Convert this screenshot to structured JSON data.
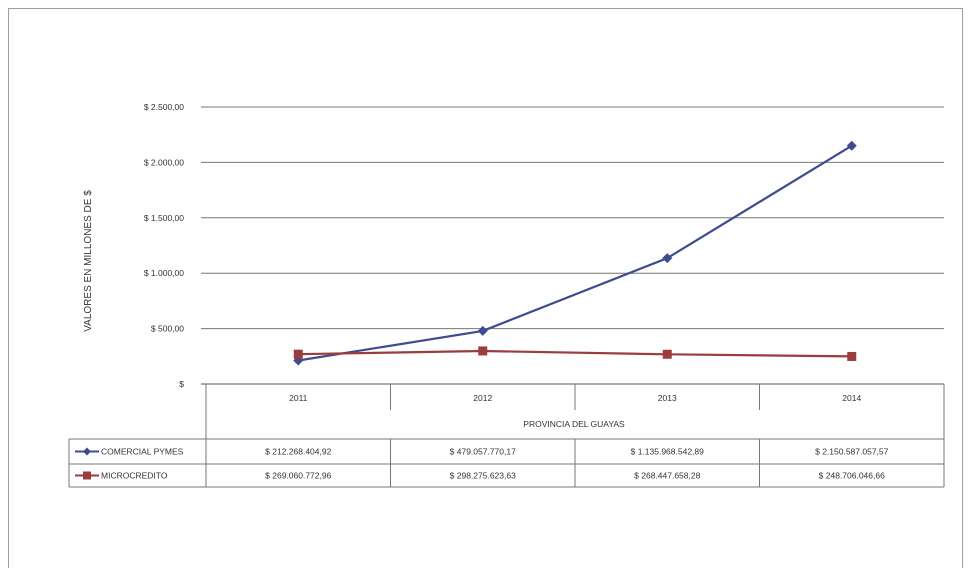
{
  "chart_data": {
    "type": "line",
    "ylabel": "VALORES EN MILLONES DE $",
    "xlabel": "PROVINCIA DEL GUAYAS",
    "categories": [
      "2011",
      "2012",
      "2013",
      "2014"
    ],
    "ylim": [
      0,
      2500
    ],
    "yticks": [
      0,
      500,
      1000,
      1500,
      2000,
      2500
    ],
    "ytick_labels": [
      "$",
      "$ 500,00",
      "$ 1.000,00",
      "$ 1.500,00",
      "$ 2.000,00",
      "$ 2.500,00"
    ],
    "grid": true,
    "legend": "data-table",
    "series": [
      {
        "name": "COMERCIAL PYMES",
        "color": "#3f4b8f",
        "marker": "diamond",
        "values": [
          212.268,
          479.058,
          1135.969,
          2150.587
        ],
        "table_labels": [
          "$ 212.268.404,92",
          "$ 479.057.770,17",
          "$ 1.135.968.542,89",
          "$ 2.150.587.057,57"
        ]
      },
      {
        "name": "MICROCREDITO",
        "color": "#9b3c3d",
        "marker": "square",
        "values": [
          269.061,
          298.276,
          268.448,
          248.706
        ],
        "table_labels": [
          "$ 269.060.772,96",
          "$ 298.275.623,63",
          "$ 268.447.658,28",
          "$ 248.706.046,66"
        ]
      }
    ]
  }
}
